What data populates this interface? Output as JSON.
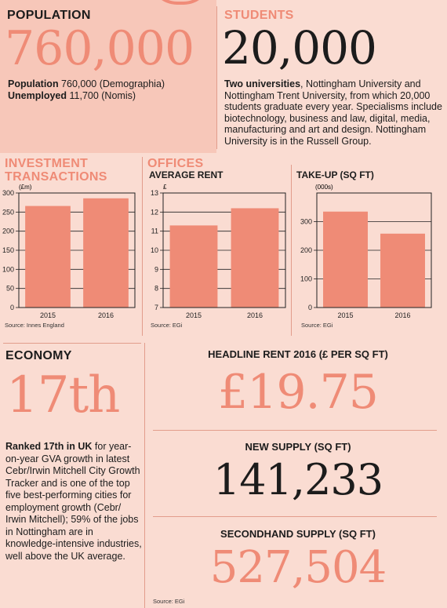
{
  "population": {
    "heading": "POPULATION",
    "big": "760,000",
    "line1_label": "Population",
    "line1_value": " 760,000 (Demographia)",
    "line2_label": "Unemployed",
    "line2_value": " 11,700 (Nomis)"
  },
  "students": {
    "heading": "STUDENTS",
    "big": "20,000",
    "lead": "Two universities",
    "body": ", Nottingham University and Nottingham Trent University, from which 20,000 students graduate every year. Specialisms include biotechnology, business and law, digital, media, manufacturing and art and design. Nottingham University is in the Russell Group."
  },
  "investment": {
    "heading_line1": "INVESTMENT",
    "heading_line2": "TRANSACTIONS",
    "source": "Source: Innes England"
  },
  "offices": {
    "heading": "OFFICES",
    "rent_title": "AVERAGE RENT",
    "takeup_title": "TAKE-UP (SQ FT)",
    "rent_source": "Source: EGi",
    "takeup_source": "Source: EGi"
  },
  "economy": {
    "heading": "ECONOMY",
    "big": "17th",
    "lead": "Ranked 17th in UK",
    "body": " for year-on-year GVA growth in latest Cebr/Irwin Mitchell City Growth Tracker and is one of the top five best-performing cities for employment growth (Cebr/ Irwin Mitchell); 59% of the jobs in Nottingham are in knowledge-intensive industries, well above the UK average."
  },
  "headline_rent": {
    "label": "HEADLINE RENT 2016 (£ PER SQ FT)",
    "value": "£19.75"
  },
  "new_supply": {
    "label": "NEW SUPPLY (SQ FT)",
    "value": "141,233"
  },
  "secondhand_supply": {
    "label": "SECONDHAND SUPPLY (SQ FT)",
    "value": "527,504"
  },
  "bottom_source": "Source: EGi",
  "colors": {
    "accent": "#ef8b76",
    "panel": "#f7c7b9",
    "background": "#fadcd2",
    "text": "#1c1c1c"
  },
  "chart_data": [
    {
      "type": "bar",
      "title": "",
      "unit_label": "(£m)",
      "categories": [
        "2015",
        "2016"
      ],
      "values": [
        266,
        286
      ],
      "ylim": [
        0,
        300
      ],
      "yticks": [
        0,
        50,
        100,
        150,
        200,
        250,
        300
      ]
    },
    {
      "type": "bar",
      "title": "AVERAGE RENT",
      "unit_label": "£",
      "categories": [
        "2015",
        "2016"
      ],
      "values": [
        11.3,
        12.2
      ],
      "ylim": [
        7,
        13
      ],
      "yticks": [
        7,
        8,
        9,
        10,
        11,
        12,
        13
      ]
    },
    {
      "type": "bar",
      "title": "TAKE-UP (SQ FT)",
      "unit_label": "(000s)",
      "categories": [
        "2015",
        "2016"
      ],
      "values": [
        335,
        258
      ],
      "ylim": [
        0,
        400
      ],
      "yticks": [
        0,
        100,
        200,
        300
      ]
    }
  ]
}
